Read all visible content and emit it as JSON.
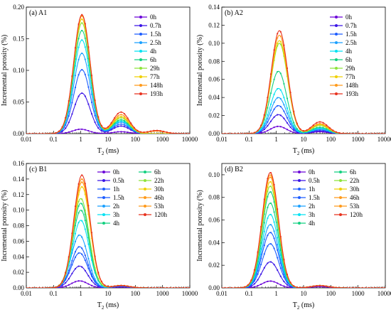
{
  "colors": [
    "#6a00d8",
    "#3a14e6",
    "#1c5cff",
    "#1aa0ff",
    "#00e2f2",
    "#12d080",
    "#8ee43a",
    "#f0d000",
    "#ff9a1a",
    "#e8321e"
  ],
  "chart_data": [
    {
      "type": "line",
      "title": "(a) A1",
      "xlabel": "T",
      "xlabel_sub": "2",
      "xlabel_unit": " (ms)",
      "ylabel": "Incremental porosity (%)",
      "x_scale": "log",
      "xlim": [
        0.01,
        10000
      ],
      "x_ticks": [
        "0.01",
        "0.1",
        "1",
        "10",
        "100",
        "1000",
        "10000"
      ],
      "ylim": [
        0,
        0.2
      ],
      "y_ticks": [
        "0.00",
        "0.05",
        "0.10",
        "0.15",
        "0.20"
      ],
      "grid": false,
      "legend": "top-right",
      "legend_columns": 1,
      "series": [
        {
          "name": "0h",
          "peaks": [
            [
              1.0,
              0.007
            ],
            [
              30,
              0.003
            ]
          ]
        },
        {
          "name": "0.7h",
          "peaks": [
            [
              1.1,
              0.064
            ],
            [
              30,
              0.012
            ]
          ]
        },
        {
          "name": "1.5h",
          "peaks": [
            [
              1.1,
              0.101
            ],
            [
              30,
              0.015
            ]
          ]
        },
        {
          "name": "2.5h",
          "peaks": [
            [
              1.1,
              0.127
            ],
            [
              30,
              0.018
            ]
          ]
        },
        {
          "name": "4h",
          "peaks": [
            [
              1.1,
              0.148
            ],
            [
              30,
              0.02
            ]
          ]
        },
        {
          "name": "6h",
          "peaks": [
            [
              1.1,
              0.163
            ],
            [
              30,
              0.022
            ]
          ]
        },
        {
          "name": "29h",
          "peaks": [
            [
              1.1,
              0.175
            ],
            [
              30,
              0.025
            ]
          ]
        },
        {
          "name": "77h",
          "peaks": [
            [
              1.1,
              0.181
            ],
            [
              30,
              0.027
            ]
          ]
        },
        {
          "name": "148h",
          "peaks": [
            [
              1.1,
              0.186
            ],
            [
              30,
              0.03
            ],
            [
              600,
              0.004
            ]
          ]
        },
        {
          "name": "193h",
          "peaks": [
            [
              1.1,
              0.188
            ],
            [
              30,
              0.034
            ],
            [
              600,
              0.005
            ]
          ]
        }
      ]
    },
    {
      "type": "line",
      "title": "(b) A2",
      "xlabel": "T",
      "xlabel_sub": "2",
      "xlabel_unit": " (ms)",
      "ylabel": "Incremental porosity (%)",
      "x_scale": "log",
      "xlim": [
        0.01,
        10000
      ],
      "x_ticks": [
        "0.01",
        "0.1",
        "1",
        "10",
        "100",
        "1000",
        "10000"
      ],
      "ylim": [
        0,
        0.14
      ],
      "y_ticks": [
        "0.00",
        "0.02",
        "0.04",
        "0.06",
        "0.08",
        "0.10",
        "0.12",
        "0.14"
      ],
      "grid": false,
      "legend": "top-right",
      "legend_columns": 1,
      "series": [
        {
          "name": "0h",
          "peaks": [
            [
              1.2,
              0.008
            ],
            [
              40,
              0.002
            ]
          ]
        },
        {
          "name": "0.7h",
          "peaks": [
            [
              1.2,
              0.021
            ],
            [
              40,
              0.003
            ]
          ]
        },
        {
          "name": "1.5h",
          "peaks": [
            [
              1.2,
              0.031
            ],
            [
              40,
              0.004
            ]
          ]
        },
        {
          "name": "2.5h",
          "peaks": [
            [
              1.2,
              0.04
            ],
            [
              40,
              0.005
            ]
          ]
        },
        {
          "name": "4h",
          "peaks": [
            [
              1.2,
              0.05
            ],
            [
              40,
              0.006
            ]
          ]
        },
        {
          "name": "6h",
          "peaks": [
            [
              1.2,
              0.069
            ],
            [
              40,
              0.007
            ]
          ]
        },
        {
          "name": "29h",
          "peaks": [
            [
              1.3,
              0.1
            ],
            [
              40,
              0.009
            ]
          ]
        },
        {
          "name": "77h",
          "peaks": [
            [
              1.3,
              0.103
            ],
            [
              40,
              0.01
            ]
          ]
        },
        {
          "name": "148h",
          "peaks": [
            [
              1.3,
              0.109
            ],
            [
              40,
              0.011
            ]
          ]
        },
        {
          "name": "193h",
          "peaks": [
            [
              1.3,
              0.114
            ],
            [
              40,
              0.013
            ]
          ]
        }
      ]
    },
    {
      "type": "line",
      "title": "(c) B1",
      "xlabel": "T",
      "xlabel_sub": "2",
      "xlabel_unit": " (ms)",
      "ylabel": "Incremental porosity (%)",
      "x_scale": "log",
      "xlim": [
        0.01,
        10000
      ],
      "x_ticks": [
        "0.01",
        "0.1",
        "1",
        "10",
        "100",
        "1000",
        "10000"
      ],
      "ylim": [
        0,
        0.16
      ],
      "y_ticks": [
        "0.00",
        "0.02",
        "0.04",
        "0.06",
        "0.08",
        "0.10",
        "0.12",
        "0.14",
        "0.16"
      ],
      "grid": false,
      "legend": "top-right",
      "legend_columns": 2,
      "series": [
        {
          "name": "0h",
          "peaks": [
            [
              0.9,
              0.009
            ],
            [
              30,
              0.001
            ]
          ]
        },
        {
          "name": "0.5h",
          "peaks": [
            [
              0.9,
              0.028
            ],
            [
              30,
              0.002
            ]
          ]
        },
        {
          "name": "1h",
          "peaks": [
            [
              0.9,
              0.045
            ],
            [
              30,
              0.002
            ]
          ]
        },
        {
          "name": "1.5h",
          "peaks": [
            [
              0.9,
              0.053
            ],
            [
              30,
              0.002
            ]
          ]
        },
        {
          "name": "2h",
          "peaks": [
            [
              0.9,
              0.068
            ],
            [
              30,
              0.003
            ]
          ]
        },
        {
          "name": "3h",
          "peaks": [
            [
              1.0,
              0.087
            ],
            [
              30,
              0.003
            ]
          ]
        },
        {
          "name": "4h",
          "peaks": [
            [
              1.0,
              0.1
            ],
            [
              30,
              0.003
            ]
          ]
        },
        {
          "name": "6h",
          "peaks": [
            [
              1.0,
              0.109
            ],
            [
              30,
              0.003
            ]
          ]
        },
        {
          "name": "22h",
          "peaks": [
            [
              1.0,
              0.115
            ],
            [
              30,
              0.003
            ]
          ]
        },
        {
          "name": "30h",
          "peaks": [
            [
              1.1,
              0.13
            ],
            [
              30,
              0.003
            ]
          ]
        },
        {
          "name": "46h",
          "peaks": [
            [
              1.1,
              0.136
            ],
            [
              30,
              0.003
            ]
          ]
        },
        {
          "name": "53h",
          "peaks": [
            [
              1.1,
              0.14
            ],
            [
              30,
              0.003
            ]
          ]
        },
        {
          "name": "120h",
          "peaks": [
            [
              1.1,
              0.145
            ],
            [
              30,
              0.003
            ]
          ]
        }
      ]
    },
    {
      "type": "line",
      "title": "(d) B2",
      "xlabel": "T",
      "xlabel_sub": "2",
      "xlabel_unit": " (ms)",
      "ylabel": "Incremental porosity (%)",
      "x_scale": "log",
      "xlim": [
        0.01,
        10000
      ],
      "x_ticks": [
        "0.01",
        "0.1",
        "1",
        "10",
        "100",
        "1000",
        "10000"
      ],
      "ylim": [
        0,
        0.11
      ],
      "y_ticks": [
        "0.00",
        "0.02",
        "0.04",
        "0.06",
        "0.08",
        "0.10"
      ],
      "grid": false,
      "legend": "top-right",
      "legend_columns": 2,
      "series": [
        {
          "name": "0h",
          "peaks": [
            [
              0.6,
              0.006
            ],
            [
              40,
              0.001
            ]
          ]
        },
        {
          "name": "0.5h",
          "peaks": [
            [
              0.6,
              0.023
            ],
            [
              40,
              0.002
            ]
          ]
        },
        {
          "name": "1h",
          "peaks": [
            [
              0.6,
              0.039
            ],
            [
              40,
              0.002
            ]
          ]
        },
        {
          "name": "1.5h",
          "peaks": [
            [
              0.6,
              0.049
            ],
            [
              40,
              0.002
            ]
          ]
        },
        {
          "name": "2h",
          "peaks": [
            [
              0.6,
              0.056
            ],
            [
              40,
              0.002
            ]
          ]
        },
        {
          "name": "3h",
          "peaks": [
            [
              0.6,
              0.065
            ],
            [
              40,
              0.002
            ]
          ]
        },
        {
          "name": "4h",
          "peaks": [
            [
              0.6,
              0.075
            ],
            [
              40,
              0.002
            ]
          ]
        },
        {
          "name": "6h",
          "peaks": [
            [
              0.6,
              0.085
            ],
            [
              40,
              0.002
            ]
          ]
        },
        {
          "name": "22h",
          "peaks": [
            [
              0.6,
              0.09
            ],
            [
              40,
              0.002
            ]
          ]
        },
        {
          "name": "30h",
          "peaks": [
            [
              0.6,
              0.094
            ],
            [
              40,
              0.002
            ]
          ]
        },
        {
          "name": "46h",
          "peaks": [
            [
              0.6,
              0.098
            ],
            [
              40,
              0.002
            ]
          ]
        },
        {
          "name": "53h",
          "peaks": [
            [
              0.6,
              0.1
            ],
            [
              40,
              0.002
            ]
          ]
        },
        {
          "name": "120h",
          "peaks": [
            [
              0.6,
              0.102
            ],
            [
              40,
              0.002
            ]
          ]
        }
      ]
    }
  ]
}
